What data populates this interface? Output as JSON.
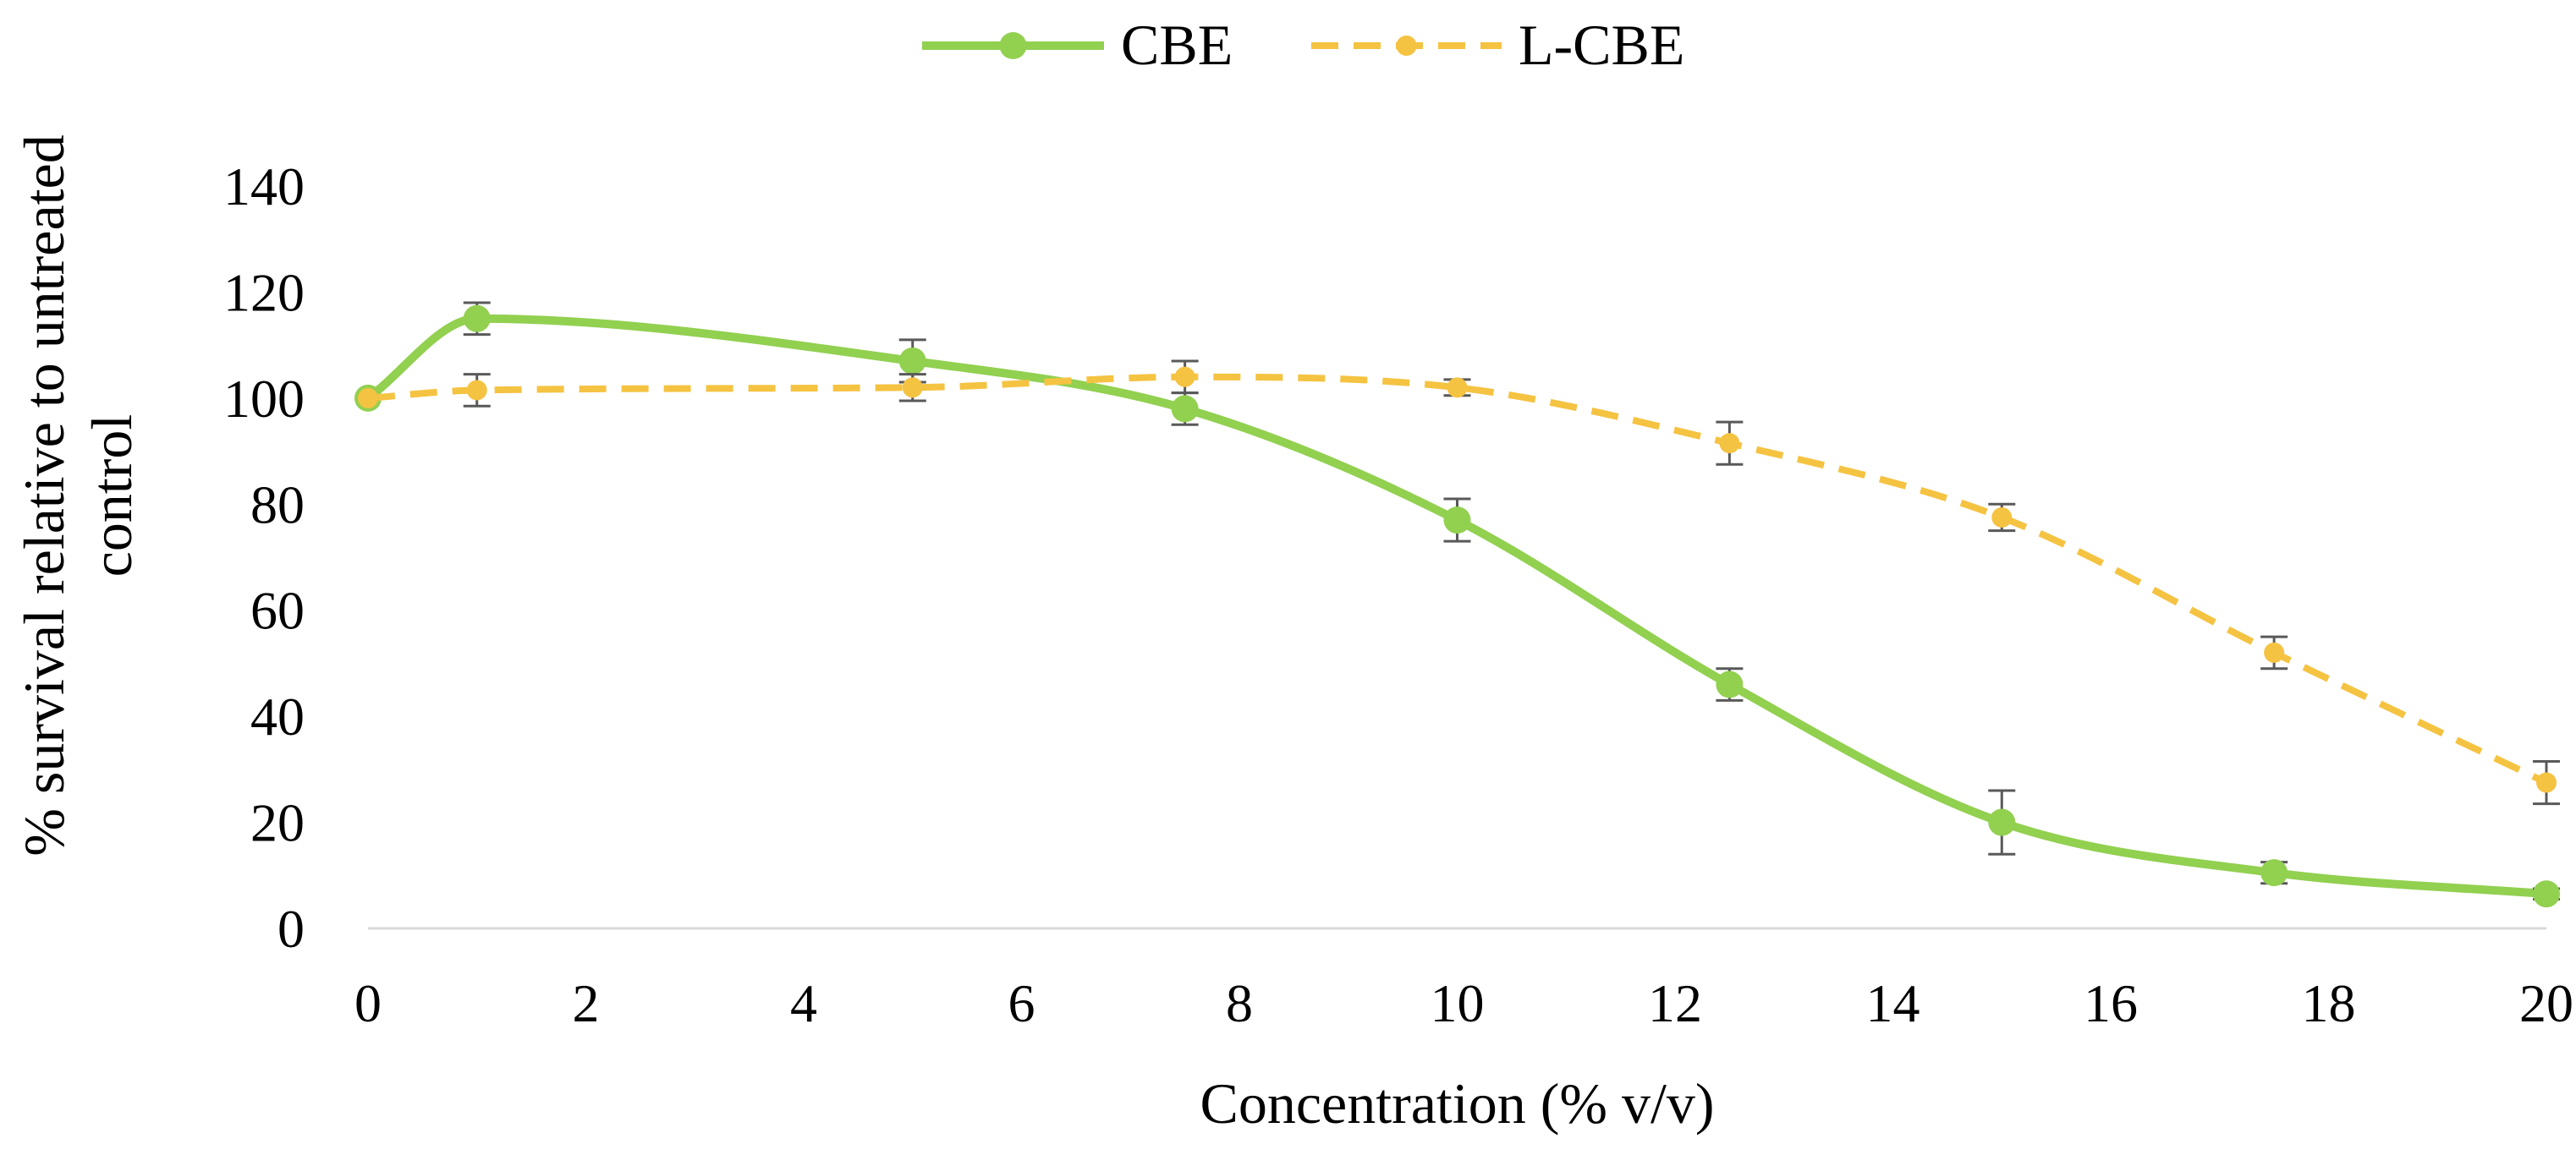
{
  "chart_data": {
    "type": "line",
    "title": "",
    "xlabel": "Concentration (% v/v)",
    "ylabel_lines": [
      "% survival relative to untreated",
      "control"
    ],
    "xlim": [
      0,
      20
    ],
    "ylim": [
      0,
      140
    ],
    "x_ticks": [
      0,
      2,
      4,
      6,
      8,
      10,
      12,
      14,
      16,
      18,
      20
    ],
    "y_ticks": [
      0,
      20,
      40,
      60,
      80,
      100,
      120,
      140
    ],
    "grid": false,
    "legend_position": "top",
    "series": [
      {
        "name": "CBE",
        "color": "#92D050",
        "line_style": "solid",
        "smooth": true,
        "x": [
          0,
          1,
          5,
          7.5,
          10,
          12.5,
          15,
          17.5,
          20
        ],
        "y": [
          100,
          115,
          107,
          98,
          77,
          46,
          20,
          10.5,
          6.5
        ],
        "error": [
          0,
          3,
          4,
          3,
          4,
          3,
          6,
          2,
          1
        ]
      },
      {
        "name": "L-CBE",
        "color": "#F5C342",
        "line_style": "dashed",
        "smooth": true,
        "x": [
          0,
          1,
          5,
          7.5,
          10,
          12.5,
          15,
          17.5,
          20
        ],
        "y": [
          100,
          101.5,
          102,
          104,
          102,
          91.5,
          77.5,
          52,
          27.5
        ],
        "error": [
          0,
          3,
          2.5,
          3,
          1.5,
          4,
          2.5,
          3,
          4
        ]
      }
    ]
  }
}
